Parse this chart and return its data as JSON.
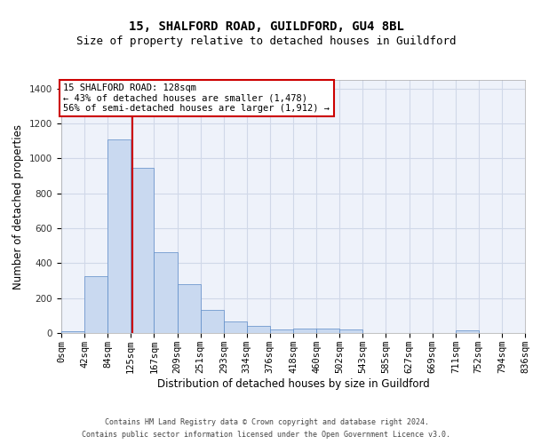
{
  "title_line1": "15, SHALFORD ROAD, GUILDFORD, GU4 8BL",
  "title_line2": "Size of property relative to detached houses in Guildford",
  "xlabel": "Distribution of detached houses by size in Guildford",
  "ylabel": "Number of detached properties",
  "bar_color": "#c9d9f0",
  "bar_edge_color": "#5b8ac7",
  "grid_color": "#d0d8e8",
  "background_color": "#eef2fa",
  "annotation_box_color": "#cc0000",
  "annotation_text": "15 SHALFORD ROAD: 128sqm\n← 43% of detached houses are smaller (1,478)\n56% of semi-detached houses are larger (1,912) →",
  "vline_x": 128,
  "vline_color": "#cc0000",
  "categories": [
    "0sqm",
    "42sqm",
    "84sqm",
    "125sqm",
    "167sqm",
    "209sqm",
    "251sqm",
    "293sqm",
    "334sqm",
    "376sqm",
    "418sqm",
    "460sqm",
    "502sqm",
    "543sqm",
    "585sqm",
    "627sqm",
    "669sqm",
    "711sqm",
    "752sqm",
    "794sqm",
    "836sqm"
  ],
  "bin_edges": [
    0,
    42,
    84,
    125,
    167,
    209,
    251,
    293,
    334,
    376,
    418,
    460,
    502,
    543,
    585,
    627,
    669,
    711,
    752,
    794,
    836
  ],
  "bar_heights": [
    10,
    325,
    1110,
    945,
    462,
    278,
    130,
    68,
    40,
    22,
    27,
    26,
    18,
    0,
    0,
    0,
    0,
    13,
    0,
    0,
    0
  ],
  "ylim": [
    0,
    1450
  ],
  "yticks": [
    0,
    200,
    400,
    600,
    800,
    1000,
    1200,
    1400
  ],
  "footnote_line1": "Contains HM Land Registry data © Crown copyright and database right 2024.",
  "footnote_line2": "Contains public sector information licensed under the Open Government Licence v3.0.",
  "title_fontsize": 10,
  "subtitle_fontsize": 9,
  "axis_label_fontsize": 8.5,
  "tick_fontsize": 7.5,
  "annotation_fontsize": 7.5,
  "footnote_fontsize": 6.0
}
